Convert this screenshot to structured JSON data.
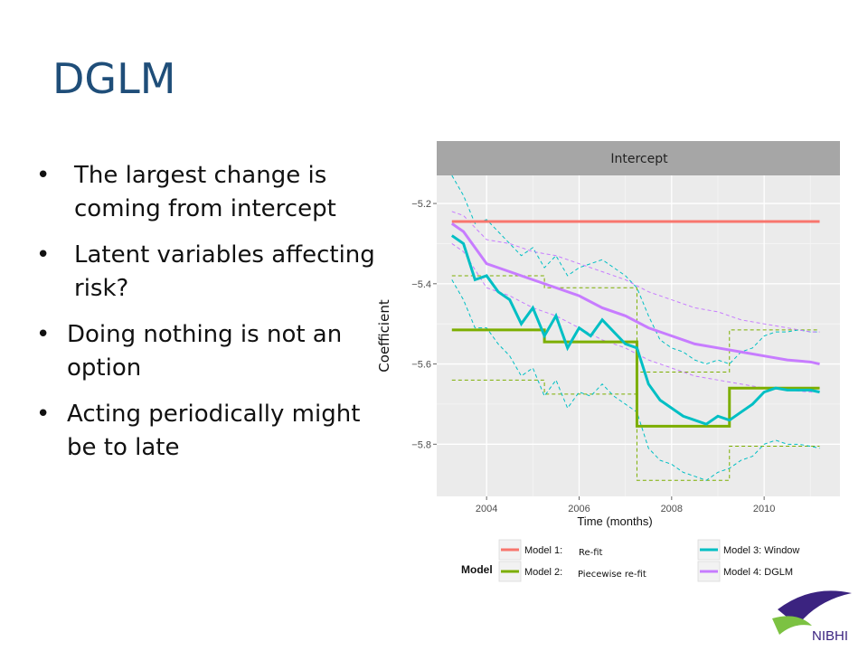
{
  "slide": {
    "title": "DGLM",
    "bullets": [
      "The largest change is coming from intercept",
      "Latent variables affecting risk?",
      "Doing nothing is not an option",
      "Acting periodically might be to late"
    ]
  },
  "logo": {
    "text": "NIBHI"
  },
  "chart_data": {
    "type": "line",
    "facet_title": "Intercept",
    "xlabel": "Time (months)",
    "ylabel": "Coefficient",
    "xlim": [
      2003.0,
      2011.6
    ],
    "ylim": [
      -5.93,
      -5.13
    ],
    "xticks": [
      2004,
      2006,
      2008,
      2010
    ],
    "yticks": [
      -5.2,
      -5.4,
      -5.6,
      -5.8
    ],
    "ytick_labels": [
      "−5.2",
      "−5.4",
      "−5.6",
      "−5.8"
    ],
    "grid": true,
    "legend": {
      "title": "Model",
      "position": "bottom",
      "entries": [
        {
          "label": "Model 1:",
          "note": "Re-fit",
          "color": "#f8766d"
        },
        {
          "label": "Model 2:",
          "note": "Piecewise re-fit",
          "color": "#7cae00"
        },
        {
          "label": "Model 3: Window",
          "note": "",
          "color": "#00bfc4"
        },
        {
          "label": "Model 4: DGLM",
          "note": "",
          "color": "#c77cff"
        }
      ]
    },
    "series": [
      {
        "name": "Model 1: Re-fit",
        "color": "#f8766d",
        "x": [
          2003.25,
          2011.2
        ],
        "y": [
          -5.245,
          -5.245
        ]
      },
      {
        "name": "Model 2: Piecewise re-fit",
        "color": "#7cae00",
        "step": true,
        "x": [
          2003.25,
          2005.25,
          2007.25,
          2009.25,
          2011.2
        ],
        "y": [
          -5.515,
          -5.545,
          -5.755,
          -5.66,
          -5.66
        ],
        "band_upper": [
          -5.38,
          -5.41,
          -5.62,
          -5.515,
          -5.515
        ],
        "band_lower": [
          -5.64,
          -5.675,
          -5.89,
          -5.805,
          -5.805
        ]
      },
      {
        "name": "Model 3: Window",
        "color": "#00bfc4",
        "x": [
          2003.25,
          2003.5,
          2003.75,
          2004.0,
          2004.25,
          2004.5,
          2004.75,
          2005.0,
          2005.25,
          2005.5,
          2005.75,
          2006.0,
          2006.25,
          2006.5,
          2006.75,
          2007.0,
          2007.25,
          2007.5,
          2007.75,
          2008.0,
          2008.25,
          2008.5,
          2008.75,
          2009.0,
          2009.25,
          2009.5,
          2009.75,
          2010.0,
          2010.25,
          2010.5,
          2010.75,
          2011.0,
          2011.2
        ],
        "y": [
          -5.28,
          -5.3,
          -5.39,
          -5.38,
          -5.42,
          -5.44,
          -5.5,
          -5.46,
          -5.53,
          -5.48,
          -5.56,
          -5.51,
          -5.53,
          -5.49,
          -5.52,
          -5.55,
          -5.56,
          -5.65,
          -5.69,
          -5.71,
          -5.73,
          -5.74,
          -5.75,
          -5.73,
          -5.74,
          -5.72,
          -5.7,
          -5.67,
          -5.66,
          -5.665,
          -5.665,
          -5.665,
          -5.67
        ],
        "band_upper": [
          -5.13,
          -5.18,
          -5.25,
          -5.24,
          -5.27,
          -5.3,
          -5.33,
          -5.31,
          -5.36,
          -5.33,
          -5.38,
          -5.36,
          -5.35,
          -5.34,
          -5.36,
          -5.38,
          -5.41,
          -5.48,
          -5.54,
          -5.56,
          -5.57,
          -5.59,
          -5.6,
          -5.59,
          -5.6,
          -5.57,
          -5.56,
          -5.53,
          -5.52,
          -5.52,
          -5.515,
          -5.52,
          -5.52
        ],
        "band_lower": [
          -5.39,
          -5.44,
          -5.51,
          -5.51,
          -5.55,
          -5.58,
          -5.63,
          -5.61,
          -5.68,
          -5.64,
          -5.71,
          -5.67,
          -5.68,
          -5.65,
          -5.68,
          -5.7,
          -5.72,
          -5.81,
          -5.84,
          -5.85,
          -5.87,
          -5.88,
          -5.89,
          -5.87,
          -5.86,
          -5.84,
          -5.83,
          -5.8,
          -5.79,
          -5.8,
          -5.8,
          -5.805,
          -5.81
        ]
      },
      {
        "name": "Model 4: DGLM",
        "color": "#c77cff",
        "x": [
          2003.25,
          2003.5,
          2004.0,
          2004.5,
          2005.0,
          2005.5,
          2006.0,
          2006.5,
          2007.0,
          2007.5,
          2008.0,
          2008.5,
          2009.0,
          2009.5,
          2010.0,
          2010.5,
          2011.0,
          2011.2
        ],
        "y": [
          -5.25,
          -5.27,
          -5.35,
          -5.37,
          -5.39,
          -5.41,
          -5.43,
          -5.46,
          -5.48,
          -5.51,
          -5.53,
          -5.55,
          -5.56,
          -5.57,
          -5.58,
          -5.59,
          -5.595,
          -5.6
        ],
        "band_upper": [
          -5.22,
          -5.23,
          -5.29,
          -5.3,
          -5.32,
          -5.33,
          -5.35,
          -5.37,
          -5.39,
          -5.42,
          -5.44,
          -5.46,
          -5.47,
          -5.49,
          -5.5,
          -5.51,
          -5.52,
          -5.52
        ],
        "band_lower": [
          -5.3,
          -5.32,
          -5.41,
          -5.43,
          -5.46,
          -5.48,
          -5.51,
          -5.54,
          -5.56,
          -5.59,
          -5.61,
          -5.63,
          -5.64,
          -5.65,
          -5.66,
          -5.665,
          -5.67,
          -5.67
        ]
      }
    ]
  }
}
